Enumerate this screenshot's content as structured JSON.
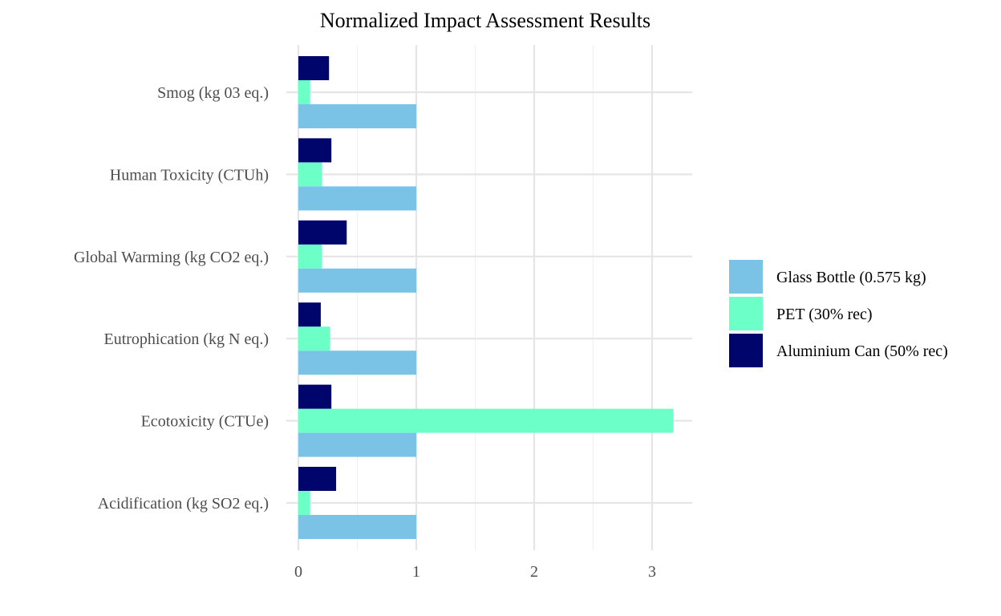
{
  "chart_data": {
    "type": "bar",
    "orientation": "horizontal",
    "title": "Normalized Impact Assessment Results",
    "xlabel": "",
    "ylabel": "",
    "categories": [
      "Acidification (kg SO2 eq.)",
      "Ecotoxicity (CTUe)",
      "Eutrophication (kg N eq.)",
      "Global Warming (kg CO2 eq.)",
      "Human Toxicity (CTUh)",
      "Smog (kg 03 eq.)"
    ],
    "series": [
      {
        "name": "Glass Bottle (0.575 kg)",
        "color": "#7ac3e6",
        "values": [
          1.0,
          1.0,
          1.0,
          1.0,
          1.0,
          1.0
        ]
      },
      {
        "name": "PET (30% rec)",
        "color": "#6cffc8",
        "values": [
          0.1,
          3.18,
          0.27,
          0.2,
          0.2,
          0.1
        ]
      },
      {
        "name": "Aluminium Can (50% rec)",
        "color": "#00056b",
        "values": [
          0.32,
          0.28,
          0.19,
          0.41,
          0.28,
          0.26
        ]
      }
    ],
    "xlim": [
      0,
      3.34
    ],
    "xticks": [
      "0",
      "1",
      "2",
      "3"
    ],
    "grid": true,
    "legend_position": "right"
  }
}
